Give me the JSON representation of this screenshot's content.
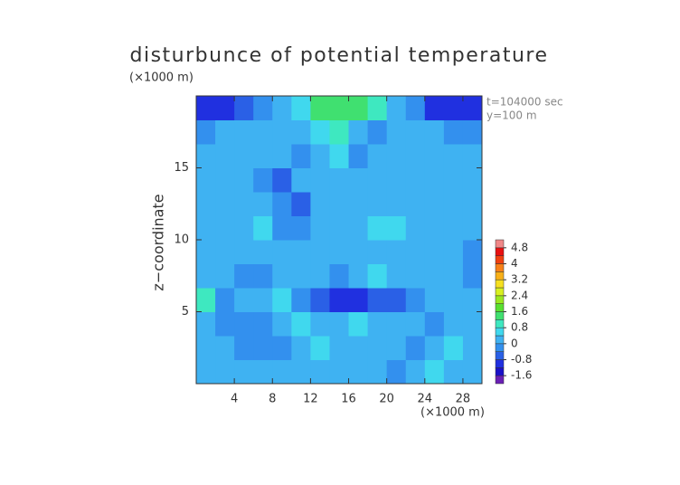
{
  "chart_data": {
    "type": "heatmap",
    "title": "disturbunce of potential temperature",
    "ylabel": "z−coordinate",
    "y_unit": "(×1000 m)",
    "x_unit": "(×1000 m)",
    "annotations": [
      "t=104000 sec",
      "y=100 m"
    ],
    "xlim": [
      0,
      30
    ],
    "xticks": [
      4,
      8,
      12,
      16,
      20,
      24,
      28
    ],
    "ylim": [
      0,
      20
    ],
    "yticks": [
      5,
      10,
      15
    ],
    "values": [
      [
        0.2,
        0.2,
        0.1,
        0.2,
        0.3,
        0.2,
        0.1,
        0.2,
        0.3,
        0.2,
        -0.1,
        0.2,
        0.5,
        0.3,
        0.2
      ],
      [
        0.1,
        0.0,
        -0.3,
        -0.4,
        -0.2,
        0.1,
        0.5,
        0.4,
        0.3,
        0.2,
        0.3,
        -0.2,
        0.3,
        0.5,
        0.2
      ],
      [
        0.2,
        -0.2,
        -0.3,
        -0.1,
        0.3,
        0.5,
        0.4,
        0.2,
        0.6,
        0.3,
        0.2,
        0.1,
        -0.1,
        0.2,
        0.3
      ],
      [
        0.9,
        -0.3,
        0.2,
        0.4,
        0.5,
        -0.2,
        -0.5,
        -0.8,
        -0.9,
        -0.7,
        -0.6,
        -0.2,
        0.1,
        0.3,
        0.2
      ],
      [
        0.2,
        0.3,
        -0.1,
        -0.4,
        0.2,
        0.4,
        0.1,
        -0.3,
        0.3,
        0.5,
        0.4,
        0.3,
        0.0,
        0.2,
        -0.2
      ],
      [
        0.3,
        0.4,
        0.2,
        0.1,
        0.3,
        0.4,
        0.2,
        0.3,
        0.3,
        0.2,
        0.4,
        0.3,
        0.2,
        0.1,
        -0.2
      ],
      [
        0.2,
        0.3,
        0.4,
        0.5,
        -0.2,
        -0.4,
        0.3,
        0.4,
        0.3,
        0.5,
        0.6,
        0.4,
        0.2,
        0.3,
        0.1
      ],
      [
        0.3,
        0.2,
        0.1,
        0.3,
        -0.3,
        -0.5,
        0.2,
        0.3,
        0.4,
        0.3,
        0.2,
        0.1,
        0.3,
        0.2,
        0.3
      ],
      [
        0.2,
        0.3,
        0.4,
        -0.2,
        -0.5,
        0.2,
        0.3,
        0.4,
        0.2,
        0.3,
        0.4,
        0.3,
        0.1,
        0.2,
        0.3
      ],
      [
        0.3,
        0.2,
        0.3,
        0.2,
        0.3,
        -0.3,
        0.4,
        0.6,
        -0.4,
        0.3,
        0.2,
        0.3,
        0.4,
        0.2,
        0.3
      ],
      [
        -0.3,
        0.1,
        0.3,
        0.2,
        0.4,
        0.3,
        0.6,
        0.9,
        0.2,
        -0.2,
        0.3,
        0.2,
        0.1,
        -0.2,
        -0.4
      ],
      [
        -1.1,
        -1.0,
        -0.6,
        -0.3,
        0.2,
        0.7,
        1.3,
        1.4,
        1.3,
        1.0,
        0.4,
        -0.4,
        -0.9,
        -1.1,
        -1.0
      ]
    ],
    "colorbar": {
      "lim": [
        -2.0,
        5.2
      ],
      "ticks": [
        -1.6,
        -0.8,
        0,
        0.8,
        1.6,
        2.4,
        3.2,
        4,
        4.8
      ],
      "colors": [
        "#6a1fb5",
        "#1a10c8",
        "#2030e0",
        "#2a60e6",
        "#3390ee",
        "#3fb2f2",
        "#40d8ee",
        "#3ee8c0",
        "#40e070",
        "#58e030",
        "#9ae820",
        "#d8f020",
        "#f6e020",
        "#f8b018",
        "#f88018",
        "#f04010",
        "#e81010",
        "#f08888"
      ]
    }
  }
}
